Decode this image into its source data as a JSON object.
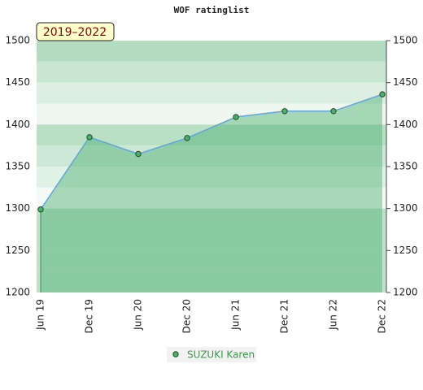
{
  "chart_data": {
    "type": "line",
    "title": "WOF ratinglist",
    "annotation": "2019–2022",
    "categories": [
      "Jun 19",
      "Dec 19",
      "Jun 20",
      "Dec 20",
      "Jun 21",
      "Dec 21",
      "Jun 22",
      "Dec 22"
    ],
    "series": [
      {
        "name": "SUZUKI Karen",
        "color": "#4caf6e",
        "values": [
          1299,
          1385,
          1365,
          1384,
          1409,
          1416,
          1416,
          1436
        ]
      }
    ],
    "ylim": [
      1200,
      1500
    ],
    "yticks": [
      1200,
      1250,
      1300,
      1350,
      1400,
      1450,
      1500
    ]
  }
}
